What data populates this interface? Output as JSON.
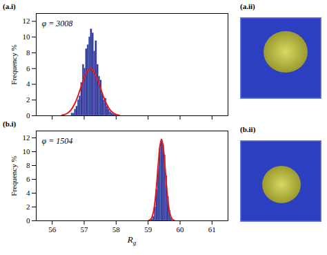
{
  "chart_data": [
    {
      "type": "histogram",
      "panel": "(a.i)",
      "annotation": "φ = 3008",
      "bins": [
        56.6,
        56.65,
        56.7,
        56.75,
        56.8,
        56.85,
        56.9,
        56.95,
        57,
        57.05,
        57.1,
        57.15,
        57.2,
        57.25,
        57.3,
        57.35,
        57.4,
        57.45,
        57.5,
        57.55,
        57.6,
        57.65,
        57.7,
        57.75,
        57.8,
        57.85,
        57.9,
        57.95,
        58
      ],
      "values": [
        0.3,
        0.3,
        0.8,
        1.2,
        2.0,
        2.5,
        4.2,
        6.5,
        6.0,
        8.5,
        9.0,
        10.0,
        11.0,
        10.5,
        8.2,
        9.5,
        6.5,
        5.0,
        4.5,
        2.8,
        2.0,
        2.2,
        1.2,
        0.8,
        0.5,
        0.3,
        0.2,
        0.2
      ],
      "color": "#2e2e8c",
      "series": [
        {
          "type": "line",
          "color": "#e31a1c",
          "x": [
            56.3,
            56.4,
            56.5,
            56.6,
            56.7,
            56.8,
            56.9,
            57.0,
            57.1,
            57.2,
            57.3,
            57.4,
            57.5,
            57.6,
            57.7,
            57.8,
            57.9,
            58.0,
            58.1
          ],
          "values": [
            0.07,
            0.17,
            0.4,
            0.81,
            1.49,
            2.46,
            3.64,
            4.81,
            5.67,
            6.0,
            5.67,
            4.81,
            3.64,
            2.46,
            1.49,
            0.81,
            0.4,
            0.17,
            0.07
          ]
        }
      ],
      "xlim": [
        55.5,
        61.5
      ],
      "xticks": [
        56,
        57,
        58,
        59,
        60,
        61
      ],
      "ylim": [
        0,
        13
      ],
      "yticks": [
        0,
        2,
        4,
        6,
        8,
        10,
        12
      ],
      "y_label": "Frequency %",
      "tick_labels": "y"
    },
    {
      "type": "histogram",
      "panel": "(b.i)",
      "annotation": "φ = 1504",
      "bins": [
        59.1,
        59.15,
        59.2,
        59.25,
        59.3,
        59.35,
        59.4,
        59.45,
        59.5,
        59.55,
        59.6,
        59.65,
        59.7,
        59.75
      ],
      "values": [
        0.2,
        0.6,
        2.0,
        4.5,
        7.5,
        10.5,
        11.5,
        11.0,
        9.5,
        6.5,
        3.5,
        1.5,
        0.5
      ],
      "color": "#2e2e8c",
      "series": [
        {
          "type": "line",
          "color": "#e31a1c",
          "x": [
            59.02,
            59.07,
            59.12,
            59.17,
            59.22,
            59.27,
            59.32,
            59.37,
            59.42,
            59.47,
            59.52,
            59.57,
            59.62,
            59.67,
            59.72,
            59.77,
            59.82
          ],
          "values": [
            0.05,
            0.17,
            0.52,
            1.35,
            2.94,
            5.41,
            8.34,
            10.82,
            11.8,
            10.82,
            8.34,
            5.41,
            2.94,
            1.35,
            0.52,
            0.17,
            0.05
          ]
        }
      ],
      "xlim": [
        55.5,
        61.5
      ],
      "xticks": [
        56,
        57,
        58,
        59,
        60,
        61
      ],
      "ylim": [
        0,
        13
      ],
      "yticks": [
        0,
        2,
        4,
        6,
        8,
        10,
        12
      ],
      "y_label": "Frequency %",
      "x_label": "Rg"
    }
  ],
  "images": [
    {
      "panel": "(a.ii)"
    },
    {
      "panel": "(b.ii)"
    }
  ]
}
